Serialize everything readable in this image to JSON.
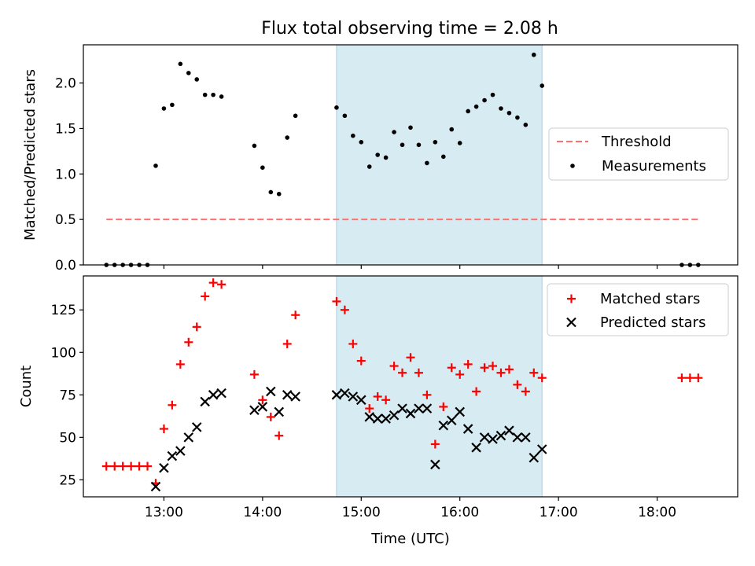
{
  "title": "Flux total observing time = 2.08 h",
  "colors": {
    "measurement": "#000000",
    "threshold": "#ff7070",
    "matched": "#ff0000",
    "predicted": "#000000",
    "band": "#add8e6"
  },
  "chart_data": [
    {
      "type": "scatter",
      "ylabel": "Matched/Predicted stars",
      "ylim": [
        0,
        2.42
      ],
      "yticks": [
        0.0,
        0.5,
        1.0,
        1.5,
        2.0
      ],
      "ytick_labels": [
        "0.0",
        "0.5",
        "1.0",
        "1.5",
        "2.0"
      ],
      "xlim": [
        "12:11",
        "18:49"
      ],
      "shaded_interval": [
        "14:45",
        "16:50"
      ],
      "threshold": {
        "name": "Threshold",
        "value": 0.5,
        "x": [
          "12:25",
          "18:25"
        ]
      },
      "legend": {
        "entries": [
          "Threshold",
          "Measurements"
        ],
        "placement": "center-right"
      },
      "series": [
        {
          "name": "Measurements",
          "points": [
            [
              "12:25",
              0.0
            ],
            [
              "12:30",
              0.0
            ],
            [
              "12:35",
              0.0
            ],
            [
              "12:40",
              0.0
            ],
            [
              "12:45",
              0.0
            ],
            [
              "12:50",
              0.0
            ],
            [
              "12:55",
              1.09
            ],
            [
              "13:00",
              1.72
            ],
            [
              "13:05",
              1.76
            ],
            [
              "13:10",
              2.21
            ],
            [
              "13:15",
              2.11
            ],
            [
              "13:20",
              2.04
            ],
            [
              "13:25",
              1.87
            ],
            [
              "13:30",
              1.87
            ],
            [
              "13:35",
              1.85
            ],
            [
              "13:55",
              1.31
            ],
            [
              "14:00",
              1.07
            ],
            [
              "14:05",
              0.8
            ],
            [
              "14:10",
              0.78
            ],
            [
              "14:15",
              1.4
            ],
            [
              "14:20",
              1.64
            ],
            [
              "14:45",
              1.73
            ],
            [
              "14:50",
              1.64
            ],
            [
              "14:55",
              1.42
            ],
            [
              "15:00",
              1.35
            ],
            [
              "15:05",
              1.08
            ],
            [
              "15:10",
              1.21
            ],
            [
              "15:15",
              1.18
            ],
            [
              "15:20",
              1.46
            ],
            [
              "15:25",
              1.32
            ],
            [
              "15:30",
              1.51
            ],
            [
              "15:35",
              1.32
            ],
            [
              "15:40",
              1.12
            ],
            [
              "15:45",
              1.35
            ],
            [
              "15:50",
              1.19
            ],
            [
              "15:55",
              1.49
            ],
            [
              "16:00",
              1.34
            ],
            [
              "16:05",
              1.69
            ],
            [
              "16:10",
              1.74
            ],
            [
              "16:15",
              1.81
            ],
            [
              "16:20",
              1.87
            ],
            [
              "16:25",
              1.72
            ],
            [
              "16:30",
              1.67
            ],
            [
              "16:35",
              1.62
            ],
            [
              "16:40",
              1.54
            ],
            [
              "16:45",
              2.31
            ],
            [
              "16:50",
              1.97
            ],
            [
              "18:15",
              0.0
            ],
            [
              "18:20",
              0.0
            ],
            [
              "18:25",
              0.0
            ]
          ]
        }
      ]
    },
    {
      "type": "scatter",
      "xlabel": "Time (UTC)",
      "ylabel": "Count",
      "ylim": [
        15,
        145
      ],
      "yticks": [
        25,
        50,
        75,
        100,
        125
      ],
      "ytick_labels": [
        "25",
        "50",
        "75",
        "100",
        "125"
      ],
      "xlim": [
        "12:11",
        "18:49"
      ],
      "xticks": [
        "13:00",
        "14:00",
        "15:00",
        "16:00",
        "17:00",
        "18:00"
      ],
      "xtick_labels": [
        "13:00",
        "14:00",
        "15:00",
        "16:00",
        "17:00",
        "18:00"
      ],
      "shaded_interval": [
        "14:45",
        "16:50"
      ],
      "legend": {
        "entries": [
          "Matched stars",
          "Predicted stars"
        ],
        "placement": "top-right"
      },
      "series": [
        {
          "name": "Matched stars",
          "marker": "plus",
          "points": [
            [
              "12:25",
              33
            ],
            [
              "12:30",
              33
            ],
            [
              "12:35",
              33
            ],
            [
              "12:40",
              33
            ],
            [
              "12:45",
              33
            ],
            [
              "12:50",
              33
            ],
            [
              "12:55",
              23
            ],
            [
              "13:00",
              55
            ],
            [
              "13:05",
              69
            ],
            [
              "13:10",
              93
            ],
            [
              "13:15",
              106
            ],
            [
              "13:20",
              115
            ],
            [
              "13:25",
              133
            ],
            [
              "13:30",
              141
            ],
            [
              "13:35",
              140
            ],
            [
              "13:55",
              87
            ],
            [
              "14:00",
              72
            ],
            [
              "14:05",
              62
            ],
            [
              "14:10",
              51
            ],
            [
              "14:15",
              105
            ],
            [
              "14:20",
              122
            ],
            [
              "14:45",
              130
            ],
            [
              "14:50",
              125
            ],
            [
              "14:55",
              105
            ],
            [
              "15:00",
              95
            ],
            [
              "15:05",
              67
            ],
            [
              "15:10",
              74
            ],
            [
              "15:15",
              72
            ],
            [
              "15:20",
              92
            ],
            [
              "15:25",
              88
            ],
            [
              "15:30",
              97
            ],
            [
              "15:35",
              88
            ],
            [
              "15:40",
              75
            ],
            [
              "15:45",
              46
            ],
            [
              "15:50",
              68
            ],
            [
              "15:55",
              91
            ],
            [
              "16:00",
              87
            ],
            [
              "16:05",
              93
            ],
            [
              "16:10",
              77
            ],
            [
              "16:15",
              91
            ],
            [
              "16:20",
              92
            ],
            [
              "16:25",
              88
            ],
            [
              "16:30",
              90
            ],
            [
              "16:35",
              81
            ],
            [
              "16:40",
              77
            ],
            [
              "16:45",
              88
            ],
            [
              "16:50",
              85
            ],
            [
              "18:15",
              85
            ],
            [
              "18:20",
              85
            ],
            [
              "18:25",
              85
            ]
          ]
        },
        {
          "name": "Predicted stars",
          "marker": "x",
          "points": [
            [
              "12:55",
              21
            ],
            [
              "13:00",
              32
            ],
            [
              "13:05",
              39
            ],
            [
              "13:10",
              42
            ],
            [
              "13:15",
              50
            ],
            [
              "13:20",
              56
            ],
            [
              "13:25",
              71
            ],
            [
              "13:30",
              75
            ],
            [
              "13:35",
              76
            ],
            [
              "13:55",
              66
            ],
            [
              "14:00",
              68
            ],
            [
              "14:05",
              77
            ],
            [
              "14:10",
              65
            ],
            [
              "14:15",
              75
            ],
            [
              "14:20",
              74
            ],
            [
              "14:45",
              75
            ],
            [
              "14:50",
              76
            ],
            [
              "14:55",
              74
            ],
            [
              "15:00",
              72
            ],
            [
              "15:05",
              62
            ],
            [
              "15:10",
              61
            ],
            [
              "15:15",
              61
            ],
            [
              "15:20",
              63
            ],
            [
              "15:25",
              67
            ],
            [
              "15:30",
              64
            ],
            [
              "15:35",
              67
            ],
            [
              "15:40",
              67
            ],
            [
              "15:45",
              34
            ],
            [
              "15:50",
              57
            ],
            [
              "15:55",
              60
            ],
            [
              "16:00",
              65
            ],
            [
              "16:05",
              55
            ],
            [
              "16:10",
              44
            ],
            [
              "16:15",
              50
            ],
            [
              "16:20",
              49
            ],
            [
              "16:25",
              51
            ],
            [
              "16:30",
              54
            ],
            [
              "16:35",
              50
            ],
            [
              "16:40",
              50
            ],
            [
              "16:45",
              38
            ],
            [
              "16:50",
              43
            ]
          ]
        }
      ]
    }
  ]
}
